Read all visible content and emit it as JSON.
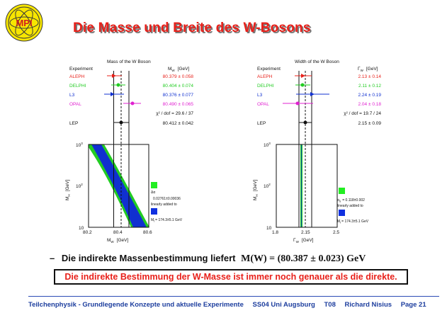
{
  "slide": {
    "title": "Die Masse und Breite des W-Bosons",
    "logo_text": "MPI"
  },
  "mass_plot": {
    "title": "Mass of the W Boson",
    "col_experiment": "Experiment",
    "col_value": "M",
    "col_value_sub": "W",
    "col_value_unit": "[GeV]",
    "rows": [
      {
        "name": "ALEPH",
        "value": "80.379 ± 0.058",
        "color": "#e8201a"
      },
      {
        "name": "DELPHI",
        "value": "80.404 ± 0.074",
        "color": "#22cc22"
      },
      {
        "name": "L3",
        "value": "80.376 ± 0.077",
        "color": "#1030d0"
      },
      {
        "name": "OPAL",
        "value": "80.490 ± 0.065",
        "color": "#e020d0"
      }
    ],
    "chi2_label": "χ² / dof  =  29.6 / 37",
    "combined_name": "LEP",
    "combined_value": "80.412 ± 0.042",
    "yaxis_label": "M",
    "yaxis_sub": "H",
    "yaxis_unit": "[GeV]",
    "yticks": [
      "10",
      "10",
      "10"
    ],
    "ytick_exps": [
      "3",
      "2",
      ""
    ],
    "xticks": [
      "80.2",
      "80.4",
      "80.6"
    ],
    "xaxis_label": "M",
    "xaxis_sub": "W",
    "xaxis_unit": "[GeV]",
    "legend1_line1": "Δα",
    "legend1_line2": "0.02761±0.00036",
    "legend1_line3": "linearly added to",
    "legend2": "M",
    "legend2_sub": "t",
    "legend2_value": "= 174.3±5.1 GeV"
  },
  "width_plot": {
    "title": "Width of the W Boson",
    "col_experiment": "Experiment",
    "col_value": "Γ",
    "col_value_sub": "W",
    "col_value_unit": "[GeV]",
    "rows": [
      {
        "name": "ALEPH",
        "value": "2.13 ± 0.14",
        "color": "#e8201a"
      },
      {
        "name": "DELPHI",
        "value": "2.11 ± 0.12",
        "color": "#22cc22"
      },
      {
        "name": "L3",
        "value": "2.24 ± 0.19",
        "color": "#1030d0"
      },
      {
        "name": "OPAL",
        "value": "2.04 ± 0.18",
        "color": "#e020d0"
      }
    ],
    "chi2_label": "χ² / dof  =  19.7 / 24",
    "combined_name": "LEP",
    "combined_value": "2.15 ± 0.09",
    "yaxis_label": "M",
    "yaxis_sub": "H",
    "yaxis_unit": "[GeV]",
    "yticks": [
      "10",
      "10",
      "10"
    ],
    "ytick_exps": [
      "3",
      "2",
      ""
    ],
    "xticks": [
      "1.8",
      "2.15",
      "2.5"
    ],
    "xaxis_label": "Γ",
    "xaxis_sub": "W",
    "xaxis_unit": "[GeV]",
    "legend1_line1": "α",
    "legend1_sub": "S",
    "legend1_value": "= 0.118±0.002",
    "legend1_line3": "linearly added to",
    "legend2": "M",
    "legend2_sub": "t",
    "legend2_value": "= 174.3±5.1 GeV"
  },
  "bullet": {
    "dash": "–",
    "text": "Die indirekte Massenbestimmung liefert",
    "formula": "M(W) = (80.387 ± 0.023) GeV"
  },
  "conclusion": "Die indirekte Bestimmung der W-Masse ist immer noch genauer als die direkte.",
  "footer": {
    "course": "Teilchenphysik - Grundlegende Konzepte und aktuelle Experimente",
    "term": "SS04 Uni Augsburg",
    "topic": "T08",
    "author": "Richard Nisius",
    "page": "Page 21"
  },
  "colors": {
    "title_red": "#e8201a",
    "footer_blue": "#1d3e9e",
    "band_blue": "#1030d0",
    "band_green": "#22cc22",
    "legend_green": "#22ee22",
    "legend_blue": "#1030e0"
  }
}
